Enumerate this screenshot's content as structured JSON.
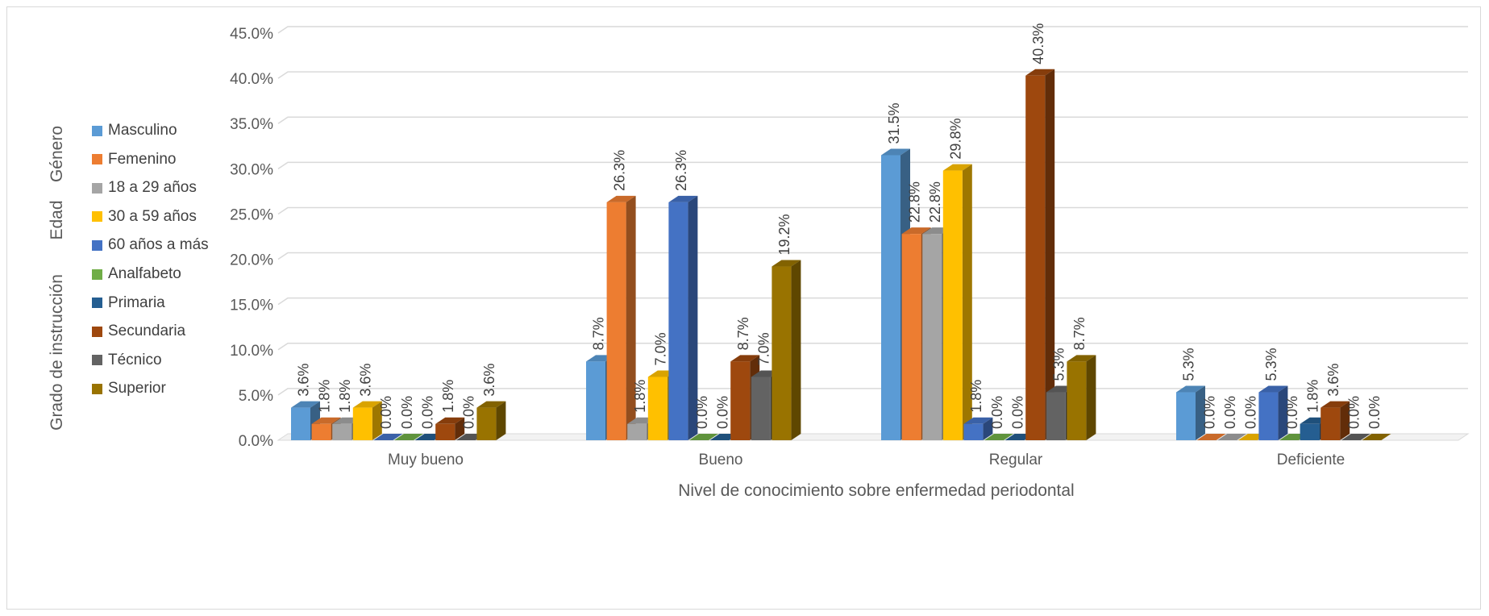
{
  "chart_data": {
    "type": "bar",
    "xlabel": "Nivel de conocimiento sobre enfermedad periodontal",
    "ylim": [
      0,
      45
    ],
    "yticks": [
      "0.0%",
      "5.0%",
      "10.0%",
      "15.0%",
      "20.0%",
      "25.0%",
      "30.0%",
      "35.0%",
      "40.0%",
      "45.0%"
    ],
    "categories": [
      "Muy bueno",
      "Bueno",
      "Regular",
      "Deficiente"
    ],
    "legend_groups": [
      "Género",
      "Edad",
      "Grado de instrucción"
    ],
    "legend_position": "left",
    "grid": true,
    "series": [
      {
        "name": "Masculino",
        "color": "#5b9bd5",
        "values": [
          3.6,
          8.7,
          31.5,
          5.3
        ],
        "labels": [
          "3.6%",
          "8.7%",
          "31.5%",
          "5.3%"
        ]
      },
      {
        "name": "Femenino",
        "color": "#ed7d31",
        "values": [
          1.8,
          26.3,
          22.8,
          0.0
        ],
        "labels": [
          "1.8%",
          "26.3%",
          "22.8%",
          "0.0%"
        ]
      },
      {
        "name": "18 a 29 años",
        "color": "#a5a5a5",
        "values": [
          1.8,
          1.8,
          22.8,
          0.0
        ],
        "labels": [
          "1.8%",
          "1.8%",
          "22.8%",
          "0.0%"
        ]
      },
      {
        "name": "30 a 59 años",
        "color": "#ffc000",
        "values": [
          3.6,
          7.0,
          29.8,
          0.0
        ],
        "labels": [
          "3.6%",
          "7.0%",
          "29.8%",
          "0.0%"
        ]
      },
      {
        "name": "60 años a más",
        "color": "#4472c4",
        "values": [
          0.0,
          26.3,
          1.8,
          5.3
        ],
        "labels": [
          "0.0%",
          "26.3%",
          "1.8%",
          "5.3%"
        ]
      },
      {
        "name": "Analfabeto",
        "color": "#70ad47",
        "values": [
          0.0,
          0.0,
          0.0,
          0.0
        ],
        "labels": [
          "0.0%",
          "0.0%",
          "0.0%",
          "0.0%"
        ]
      },
      {
        "name": "Primaria",
        "color": "#255e91",
        "values": [
          0.0,
          0.0,
          0.0,
          1.8
        ],
        "labels": [
          "0.0%",
          "0.0%",
          "0.0%",
          "1.8%"
        ]
      },
      {
        "name": "Secundaria",
        "color": "#9e480e",
        "values": [
          1.8,
          8.7,
          40.3,
          3.6
        ],
        "labels": [
          "1.8%",
          "8.7%",
          "40.3%",
          "3.6%"
        ]
      },
      {
        "name": "Técnico",
        "color": "#636363",
        "values": [
          0.0,
          7.0,
          5.3,
          0.0
        ],
        "labels": [
          "0.0%",
          "7.0%",
          "5.3%",
          "0.0%"
        ]
      },
      {
        "name": "Superior",
        "color": "#997300",
        "values": [
          3.6,
          19.2,
          8.7,
          0.0
        ],
        "labels": [
          "3.6%",
          "19.2%",
          "8.7%",
          "0.0%"
        ]
      }
    ]
  }
}
